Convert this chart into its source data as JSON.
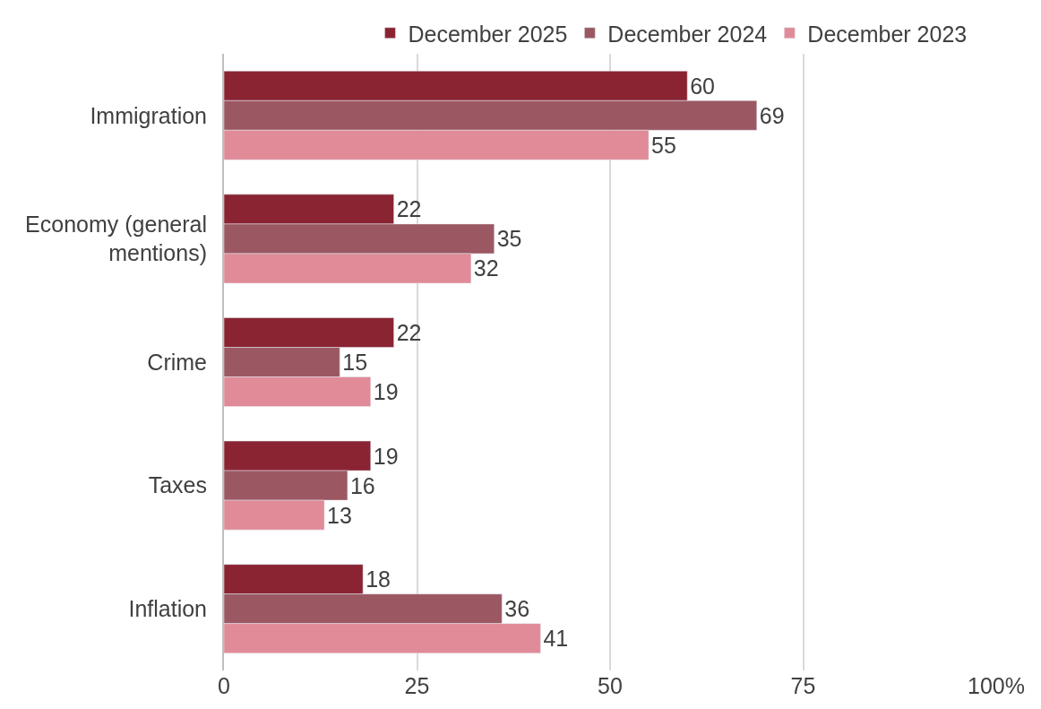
{
  "chart_data": {
    "type": "bar",
    "orientation": "horizontal",
    "categories": [
      "Immigration",
      "Economy (general mentions)",
      "Crime",
      "Taxes",
      "Inflation"
    ],
    "series": [
      {
        "name": "December 2025",
        "color": "#8a2432",
        "values": [
          60,
          22,
          22,
          19,
          18
        ]
      },
      {
        "name": "December 2024",
        "color": "#9b5862",
        "values": [
          69,
          35,
          15,
          16,
          36
        ]
      },
      {
        "name": "December 2023",
        "color": "#e08b97",
        "values": [
          55,
          32,
          19,
          13,
          41
        ]
      }
    ],
    "xlim": [
      0,
      100
    ],
    "xticks": [
      0,
      25,
      50,
      75,
      {
        "value": 100,
        "label": "100%"
      }
    ],
    "grid": "x",
    "legend": "top",
    "data_labels": true
  }
}
